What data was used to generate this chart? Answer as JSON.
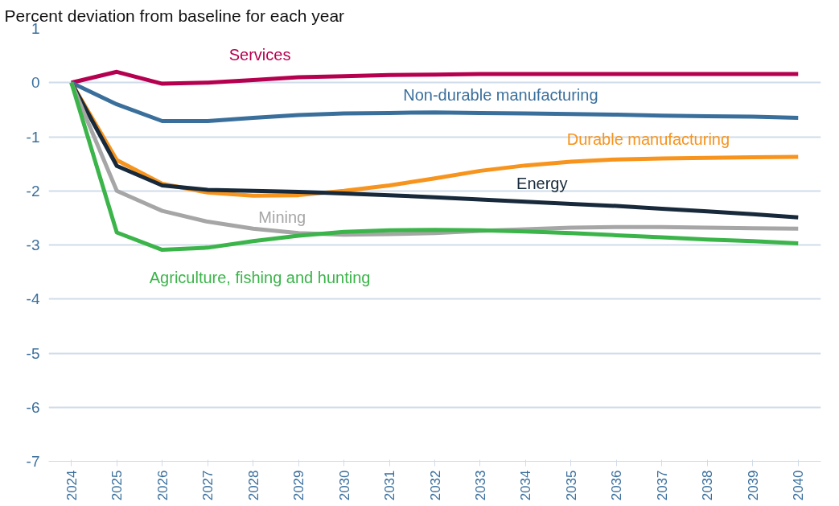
{
  "chart_data": {
    "type": "line",
    "title": "Percent deviation from baseline for each year",
    "categories": [
      "2024",
      "2025",
      "2026",
      "2027",
      "2028",
      "2029",
      "2030",
      "2031",
      "2032",
      "2033",
      "2034",
      "2035",
      "2036",
      "2037",
      "2038",
      "2039",
      "2040"
    ],
    "series": [
      {
        "name": "Services",
        "color": "#b5004f",
        "values": [
          0,
          0.2,
          -0.02,
          0,
          0.05,
          0.1,
          0.12,
          0.14,
          0.15,
          0.16,
          0.16,
          0.16,
          0.16,
          0.16,
          0.16,
          0.16,
          0.16
        ]
      },
      {
        "name": "Non-durable manufacturing",
        "color": "#3a6f9c",
        "values": [
          0,
          -0.4,
          -0.71,
          -0.71,
          -0.65,
          -0.6,
          -0.57,
          -0.56,
          -0.55,
          -0.56,
          -0.57,
          -0.58,
          -0.59,
          -0.61,
          -0.62,
          -0.63,
          -0.65
        ]
      },
      {
        "name": "Durable manufacturing",
        "color": "#f7941d",
        "values": [
          0,
          -1.43,
          -1.87,
          -2.03,
          -2.09,
          -2.08,
          -2.0,
          -1.9,
          -1.77,
          -1.63,
          -1.53,
          -1.46,
          -1.42,
          -1.4,
          -1.39,
          -1.38,
          -1.37
        ]
      },
      {
        "name": "Energy",
        "color": "#17293a",
        "values": [
          0,
          -1.54,
          -1.9,
          -1.98,
          -2.0,
          -2.02,
          -2.05,
          -2.08,
          -2.12,
          -2.16,
          -2.2,
          -2.24,
          -2.28,
          -2.33,
          -2.38,
          -2.43,
          -2.49
        ]
      },
      {
        "name": "Mining",
        "color": "#a6a6a6",
        "values": [
          0,
          -2.0,
          -2.37,
          -2.57,
          -2.7,
          -2.78,
          -2.81,
          -2.8,
          -2.78,
          -2.74,
          -2.71,
          -2.68,
          -2.67,
          -2.67,
          -2.68,
          -2.69,
          -2.7
        ]
      },
      {
        "name": "Agriculture, fishing and hunting",
        "color": "#3bb44a",
        "values": [
          0,
          -2.77,
          -3.09,
          -3.05,
          -2.93,
          -2.83,
          -2.76,
          -2.73,
          -2.72,
          -2.73,
          -2.75,
          -2.78,
          -2.82,
          -2.86,
          -2.9,
          -2.93,
          -2.97
        ]
      }
    ],
    "ylim": [
      -7,
      1
    ],
    "yticks": [
      -7,
      -6,
      -5,
      -4,
      -3,
      -2,
      -1,
      0,
      1
    ],
    "grid": "y",
    "marker": "none",
    "line_style": "solid"
  }
}
